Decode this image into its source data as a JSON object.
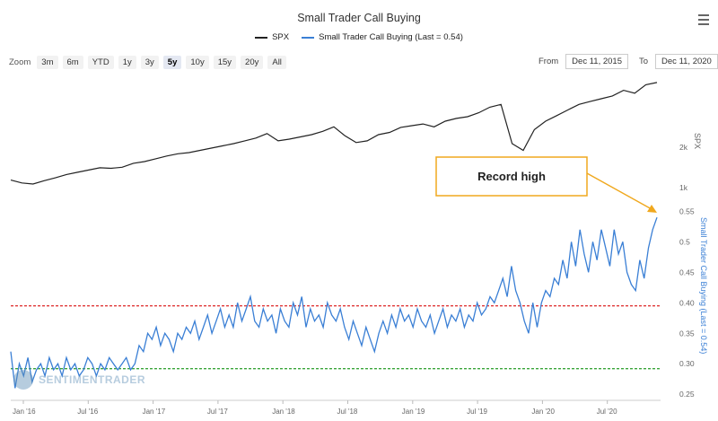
{
  "chart_data": {
    "type": "line",
    "title": "Small Trader Call Buying",
    "series": [
      {
        "name": "SPX",
        "color": "#222222",
        "axis": "top"
      },
      {
        "name": "Small Trader Call Buying (Last = 0.54)",
        "color": "#3a7fd5",
        "axis": "bottom"
      }
    ],
    "x_tick_labels": [
      "Jan '16",
      "Jul '16",
      "Jan '17",
      "Jul '17",
      "Jan '18",
      "Jul '18",
      "Jan '19",
      "Jul '19",
      "Jan '20",
      "Jul '20"
    ],
    "spx_axis": {
      "label": "SPX",
      "ticks": [
        "2k",
        "1k"
      ]
    },
    "spx_values": [
      1950,
      1900,
      1880,
      1940,
      1990,
      2050,
      2090,
      2130,
      2170,
      2160,
      2180,
      2250,
      2280,
      2330,
      2380,
      2420,
      2440,
      2480,
      2520,
      2560,
      2600,
      2650,
      2700,
      2780,
      2650,
      2680,
      2720,
      2760,
      2820,
      2900,
      2740,
      2620,
      2650,
      2760,
      2800,
      2890,
      2920,
      2950,
      2900,
      3000,
      3050,
      3080,
      3150,
      3250,
      3300,
      2600,
      2480,
      2850,
      3000,
      3100,
      3200,
      3300,
      3350,
      3400,
      3450,
      3550,
      3500,
      3650,
      3690
    ],
    "call_axis": {
      "label": "Small Trader Call Buying (Last = 0.54)",
      "ticks": [
        0.55,
        0.5,
        0.45,
        0.4,
        0.35,
        0.3,
        0.25
      ],
      "ylim": [
        0.24,
        0.555
      ]
    },
    "call_values": [
      0.32,
      0.26,
      0.3,
      0.28,
      0.31,
      0.27,
      0.29,
      0.3,
      0.28,
      0.31,
      0.29,
      0.3,
      0.28,
      0.31,
      0.29,
      0.3,
      0.28,
      0.29,
      0.31,
      0.3,
      0.28,
      0.3,
      0.29,
      0.31,
      0.3,
      0.29,
      0.3,
      0.31,
      0.29,
      0.3,
      0.33,
      0.32,
      0.35,
      0.34,
      0.36,
      0.33,
      0.35,
      0.34,
      0.32,
      0.35,
      0.34,
      0.36,
      0.35,
      0.37,
      0.34,
      0.36,
      0.38,
      0.35,
      0.37,
      0.39,
      0.36,
      0.38,
      0.36,
      0.4,
      0.37,
      0.39,
      0.41,
      0.37,
      0.36,
      0.39,
      0.37,
      0.38,
      0.35,
      0.39,
      0.37,
      0.36,
      0.4,
      0.38,
      0.41,
      0.36,
      0.39,
      0.37,
      0.38,
      0.36,
      0.4,
      0.38,
      0.37,
      0.39,
      0.36,
      0.34,
      0.37,
      0.35,
      0.33,
      0.36,
      0.34,
      0.32,
      0.35,
      0.37,
      0.35,
      0.38,
      0.36,
      0.39,
      0.37,
      0.38,
      0.36,
      0.39,
      0.37,
      0.36,
      0.38,
      0.35,
      0.37,
      0.39,
      0.36,
      0.38,
      0.37,
      0.39,
      0.36,
      0.38,
      0.37,
      0.4,
      0.38,
      0.39,
      0.41,
      0.4,
      0.42,
      0.44,
      0.41,
      0.46,
      0.42,
      0.4,
      0.37,
      0.35,
      0.4,
      0.36,
      0.4,
      0.42,
      0.41,
      0.44,
      0.43,
      0.47,
      0.44,
      0.5,
      0.46,
      0.52,
      0.48,
      0.45,
      0.5,
      0.47,
      0.52,
      0.49,
      0.46,
      0.52,
      0.48,
      0.5,
      0.45,
      0.43,
      0.42,
      0.47,
      0.44,
      0.49,
      0.52,
      0.54
    ],
    "reference_lines": [
      {
        "value": 0.395,
        "color": "#e03a3a"
      },
      {
        "value": 0.292,
        "color": "#3aa53a"
      }
    ],
    "annotation": {
      "text": "Record high",
      "color": "#f0a81e"
    }
  },
  "toolbar": {
    "zoom_label": "Zoom",
    "zoom_options": [
      "3m",
      "6m",
      "YTD",
      "1y",
      "3y",
      "5y",
      "10y",
      "15y",
      "20y",
      "All"
    ],
    "zoom_active": "5y",
    "from_label": "From",
    "from_value": "Dec 11, 2015",
    "to_label": "To",
    "to_value": "Dec 11, 2020"
  },
  "logo_text": "SENTIMENTRADER",
  "menu_icon": "hamburger-menu-icon"
}
